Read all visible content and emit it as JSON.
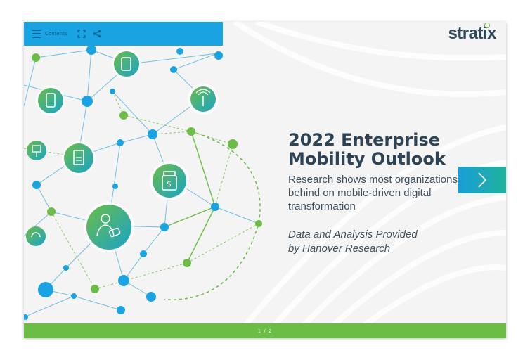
{
  "toolbar": {
    "contents_label": "Contents",
    "menu_icon": "hamburger-menu-icon",
    "fullscreen_icon": "fullscreen-icon",
    "share_icon": "share-icon"
  },
  "brand": {
    "logo_text": "stratix",
    "colors": {
      "primary_blue": "#1aa3e3",
      "green": "#6cbd45",
      "teal": "#1fb39a",
      "dark_text": "#2f4356"
    }
  },
  "cover": {
    "title_line1": "2022 Enterprise",
    "title_line2": "Mobility Outlook",
    "subtitle": "Research shows most organizations are behind on mobile-driven digital transformation",
    "credit_line1": "Data and Analysis Provided",
    "credit_line2": "by Hanover Research"
  },
  "navigation": {
    "next_icon": "chevron-right-icon",
    "page_indicator": "1 / 2"
  },
  "illustration_icons": [
    "smartphone-icon",
    "tablet-icon",
    "wireless-tower-icon",
    "kiosk-icon",
    "document-transfer-icon",
    "medicine-bottle-icon",
    "doctor-icon",
    "cloud-sync-icon"
  ]
}
